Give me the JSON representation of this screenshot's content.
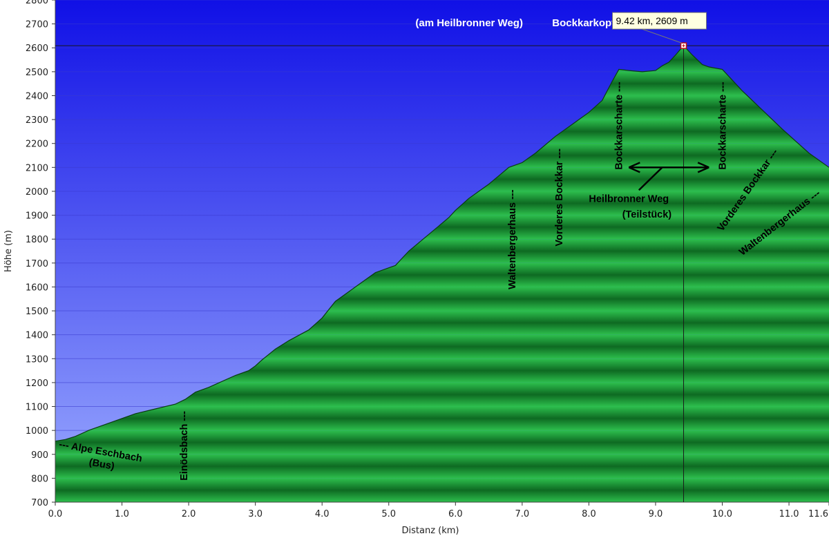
{
  "colors": {
    "sky_top": "#1010e6",
    "sky_bottom": "#9cacff",
    "fill_light": "#2dbf4d",
    "fill_dark": "#0e6a22",
    "marker_line": "#1a1a1a",
    "tooltip_bg": "#ffffe1"
  },
  "chart_data": {
    "type": "area",
    "xlabel": "Distanz  (km)",
    "ylabel": "Höhe (m)",
    "xlim": [
      0,
      11.6
    ],
    "ylim": [
      700,
      2800
    ],
    "grid": true,
    "x_ticks": [
      "0.0",
      "1.0",
      "2.0",
      "3.0",
      "4.0",
      "5.0",
      "6.0",
      "7.0",
      "8.0",
      "9.0",
      "10.0",
      "11.0",
      "11.6"
    ],
    "x_tick_values": [
      0,
      1,
      2,
      3,
      4,
      5,
      6,
      7,
      8,
      9,
      10,
      11,
      11.6
    ],
    "y_ticks": [
      "700",
      "800",
      "900",
      "1000",
      "1100",
      "1200",
      "1300",
      "1400",
      "1500",
      "1600",
      "1700",
      "1800",
      "1900",
      "2000",
      "2100",
      "2200",
      "2300",
      "2400",
      "2500",
      "2600",
      "2700",
      "2800"
    ],
    "y_tick_values": [
      700,
      800,
      900,
      1000,
      1100,
      1200,
      1300,
      1400,
      1500,
      1600,
      1700,
      1800,
      1900,
      2000,
      2100,
      2200,
      2300,
      2400,
      2500,
      2600,
      2700,
      2800
    ],
    "series": [
      {
        "x": [
          0.0,
          0.15,
          0.3,
          0.5,
          0.7,
          1.0,
          1.2,
          1.5,
          1.8,
          1.95,
          2.1,
          2.3,
          2.5,
          2.7,
          2.9,
          3.0,
          3.1,
          3.3,
          3.5,
          3.8,
          4.0,
          4.2,
          4.5,
          4.8,
          5.0,
          5.1,
          5.3,
          5.6,
          5.9,
          6.0,
          6.2,
          6.5,
          6.8,
          7.0,
          7.2,
          7.5,
          7.8,
          8.0,
          8.2,
          8.35,
          8.45,
          8.6,
          8.8,
          9.0,
          9.1,
          9.2,
          9.3,
          9.42,
          9.55,
          9.7,
          9.8,
          9.9,
          10.0,
          10.1,
          10.3,
          10.6,
          10.9,
          11.1,
          11.3,
          11.6
        ],
        "y": [
          955,
          962,
          975,
          1000,
          1020,
          1050,
          1070,
          1090,
          1110,
          1130,
          1160,
          1180,
          1205,
          1230,
          1250,
          1270,
          1295,
          1340,
          1375,
          1420,
          1470,
          1540,
          1600,
          1660,
          1680,
          1690,
          1750,
          1820,
          1890,
          1920,
          1970,
          2030,
          2100,
          2120,
          2160,
          2230,
          2290,
          2330,
          2380,
          2460,
          2510,
          2505,
          2500,
          2505,
          2525,
          2540,
          2570,
          2609,
          2570,
          2530,
          2520,
          2515,
          2510,
          2480,
          2420,
          2340,
          2260,
          2210,
          2160,
          2100
        ]
      }
    ],
    "highlight": {
      "x": 9.42,
      "y": 2609,
      "label": "9.42 km, 2609 m"
    },
    "annotations": [
      {
        "text": "--- Alpe Eschbach",
        "km": 0.05,
        "elev": 930,
        "rotate": 10
      },
      {
        "text": "(Bus)",
        "km": 0.5,
        "elev": 855,
        "rotate": 10
      },
      {
        "text": "Einödsbach ---",
        "km": 1.98,
        "elev": 790,
        "rotate": -90
      },
      {
        "text": "Waltenbergerhaus ---",
        "km": 6.9,
        "elev": 1590,
        "rotate": -90
      },
      {
        "text": "Vorderes Bockkar ---",
        "km": 7.6,
        "elev": 1770,
        "rotate": -90
      },
      {
        "text": "Bockkarscharte ---",
        "km": 8.5,
        "elev": 2090,
        "rotate": -90
      },
      {
        "text": "Bockkarscharte ---",
        "km": 10.05,
        "elev": 2090,
        "rotate": -90
      },
      {
        "text": "Heilbronner Weg",
        "km": 8.0,
        "elev": 1955,
        "rotate": 0
      },
      {
        "text": "(Teilstück)",
        "km": 8.5,
        "elev": 1890,
        "rotate": 0
      },
      {
        "text": "Vorderes Bockkar ---",
        "km": 10.0,
        "elev": 1830,
        "rotate": -55
      },
      {
        "text": "Waltenbergerhaus ---",
        "km": 10.3,
        "elev": 1730,
        "rotate": -38
      }
    ],
    "top_annotations": [
      {
        "text": "(am Heilbronner Weg)",
        "km": 5.4,
        "elev": 2705
      },
      {
        "text": "Bockkarkopf",
        "km": 7.45,
        "elev": 2705
      }
    ]
  }
}
